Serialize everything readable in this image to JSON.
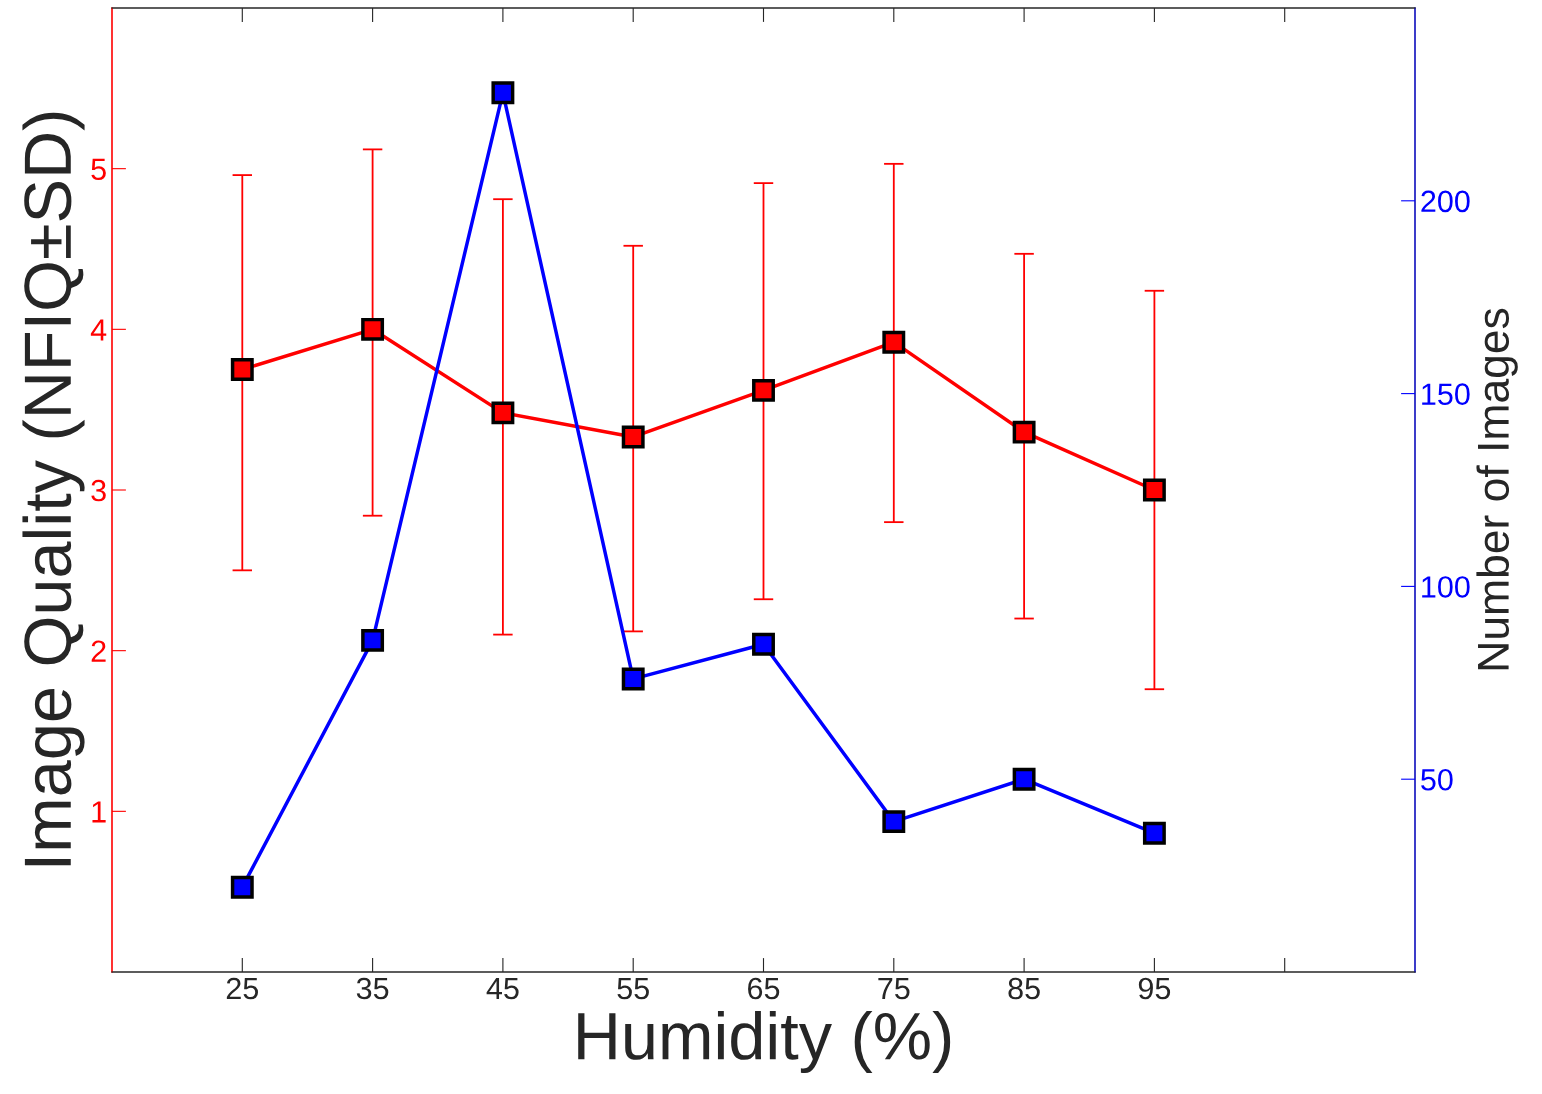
{
  "chart_data": {
    "type": "line",
    "xlabel": "Humidity (%)",
    "ylabel": "Image Quality (NFIQ±SD)",
    "y2label": "Number of Images",
    "categories": [
      "25",
      "35",
      "45",
      "55",
      "65",
      "75",
      "85",
      "95",
      null
    ],
    "ylim": [
      0,
      6
    ],
    "yticks": [
      1,
      2,
      3,
      4,
      5
    ],
    "y2lim": [
      0,
      250
    ],
    "y2ticks": [
      50,
      100,
      150,
      200
    ],
    "marker": "square",
    "line_style": "solid",
    "grid": false,
    "legend": false,
    "series": [
      {
        "color": "#ff0000",
        "values": [
          3.75,
          4.0,
          3.48,
          3.33,
          3.62,
          3.92,
          3.36,
          3.0,
          null
        ],
        "errors": [
          [
            2.5,
            4.96
          ],
          [
            2.84,
            5.12
          ],
          [
            2.1,
            4.81
          ],
          [
            2.12,
            4.52
          ],
          [
            2.32,
            4.91
          ],
          [
            2.8,
            5.03
          ],
          [
            2.2,
            4.47
          ],
          [
            1.76,
            4.24
          ],
          null
        ]
      },
      {
        "color": "#0000ff",
        "axis": "y2",
        "values": [
          22,
          86,
          228,
          76,
          85,
          39,
          50,
          36,
          null
        ]
      }
    ]
  }
}
